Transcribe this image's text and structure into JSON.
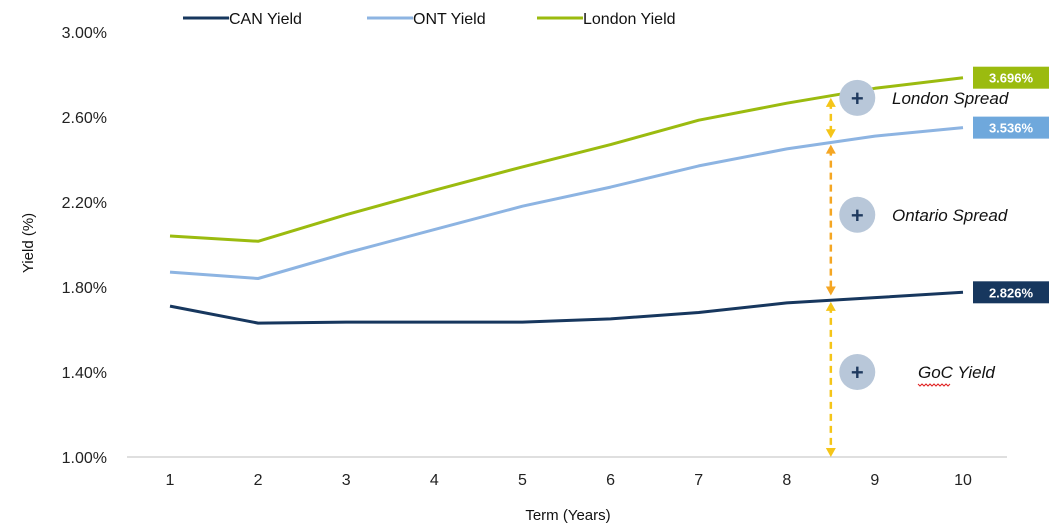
{
  "chart_data": {
    "type": "line",
    "x": [
      1,
      2,
      3,
      4,
      5,
      6,
      7,
      8,
      9,
      10
    ],
    "xlabel": "Term (Years)",
    "ylabel": "Yield (%)",
    "ylim": [
      1.0,
      3.0
    ],
    "ytick_labels": [
      "1.00%",
      "1.40%",
      "1.80%",
      "2.20%",
      "2.60%",
      "3.00%"
    ],
    "yticks": [
      1.0,
      1.4,
      1.8,
      2.2,
      2.6,
      3.0
    ],
    "xtick_labels": [
      "1",
      "2",
      "3",
      "4",
      "5",
      "6",
      "7",
      "8",
      "9",
      "10"
    ],
    "grid": false,
    "legend_position": "top",
    "series": [
      {
        "name": "CAN Yield",
        "color": "#17375e",
        "values": [
          1.71,
          1.63,
          1.635,
          1.635,
          1.635,
          1.65,
          1.68,
          1.725,
          1.75,
          1.775
        ]
      },
      {
        "name": "ONT Yield",
        "color": "#8db4e2",
        "values": [
          1.87,
          1.84,
          1.96,
          2.07,
          2.18,
          2.27,
          2.37,
          2.45,
          2.51,
          2.55
        ]
      },
      {
        "name": "London Yield",
        "color": "#9bbb0f",
        "values": [
          2.04,
          2.015,
          2.14,
          2.255,
          2.365,
          2.47,
          2.585,
          2.665,
          2.735,
          2.785
        ]
      }
    ],
    "callouts": [
      {
        "series": "London Yield",
        "label": "3.696%",
        "color": "#9bbb0f"
      },
      {
        "series": "ONT Yield",
        "label": "3.536%",
        "color": "#6fa8dc"
      },
      {
        "series": "CAN Yield",
        "label": "2.826%",
        "color": "#17375e"
      }
    ],
    "annotations": [
      {
        "label": "London Spread",
        "y": 2.69
      },
      {
        "label": "Ontario Spread",
        "y": 2.14
      },
      {
        "label": "GoC Yield",
        "y": 1.4
      }
    ],
    "arrows": [
      {
        "from": 2.69,
        "to": 2.5,
        "color": "#f5c518"
      },
      {
        "from": 2.47,
        "to": 1.76,
        "color": "#f5a623"
      },
      {
        "from": 1.73,
        "to": 1.0,
        "color": "#f5c518"
      }
    ],
    "arrow_x": 8.5
  }
}
